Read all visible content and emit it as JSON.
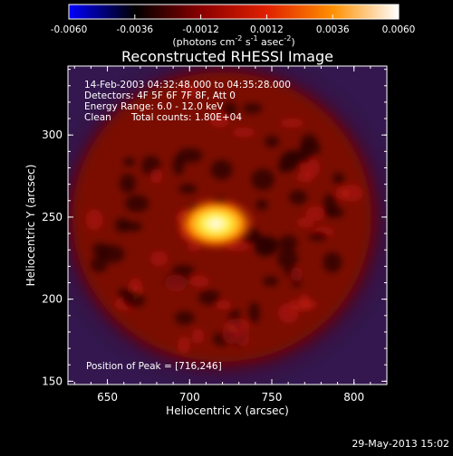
{
  "chart_data": {
    "type": "heatmap",
    "title": "Reconstructed RHESSI Image",
    "xlabel": "Heliocentric X (arcsec)",
    "ylabel": "Heliocentric Y (arcsec)",
    "xlim": [
      626,
      820
    ],
    "ylim": [
      148,
      342
    ],
    "x_ticks": [
      650,
      700,
      750,
      800
    ],
    "y_ticks": [
      150,
      200,
      250,
      300
    ],
    "colorbar": {
      "label_parts": [
        "(photons cm",
        "-2",
        " s",
        "-1",
        " asec",
        "-2",
        ")"
      ],
      "range": [
        -0.006,
        0.006
      ],
      "tick_labels": [
        "-0.0060",
        "-0.0036",
        "-0.0012",
        "0.0012",
        "0.0036",
        "0.0060"
      ],
      "tick_values": [
        -0.006,
        -0.0036,
        -0.0012,
        0.0012,
        0.0036,
        0.006
      ],
      "gradient_colors": [
        "#0000ff",
        "#000000",
        "#8a0000",
        "#e02000",
        "#ff9000",
        "#ffffff"
      ]
    },
    "annotations": {
      "time_range": "14-Feb-2003 04:32:48.000 to 04:35:28.000",
      "detectors": "Detectors: 4F 5F 6F 7F 8F, Att 0",
      "energy_range": "Energy Range: 6.0 - 12.0 keV",
      "clean_label": "Clean",
      "total_counts": "Total counts: 1.80E+04",
      "peak_position": "Position of Peak = [716,246]"
    },
    "peak": {
      "x": 716,
      "y": 246
    }
  },
  "footer": {
    "timestamp": "29-May-2013 15:02"
  }
}
